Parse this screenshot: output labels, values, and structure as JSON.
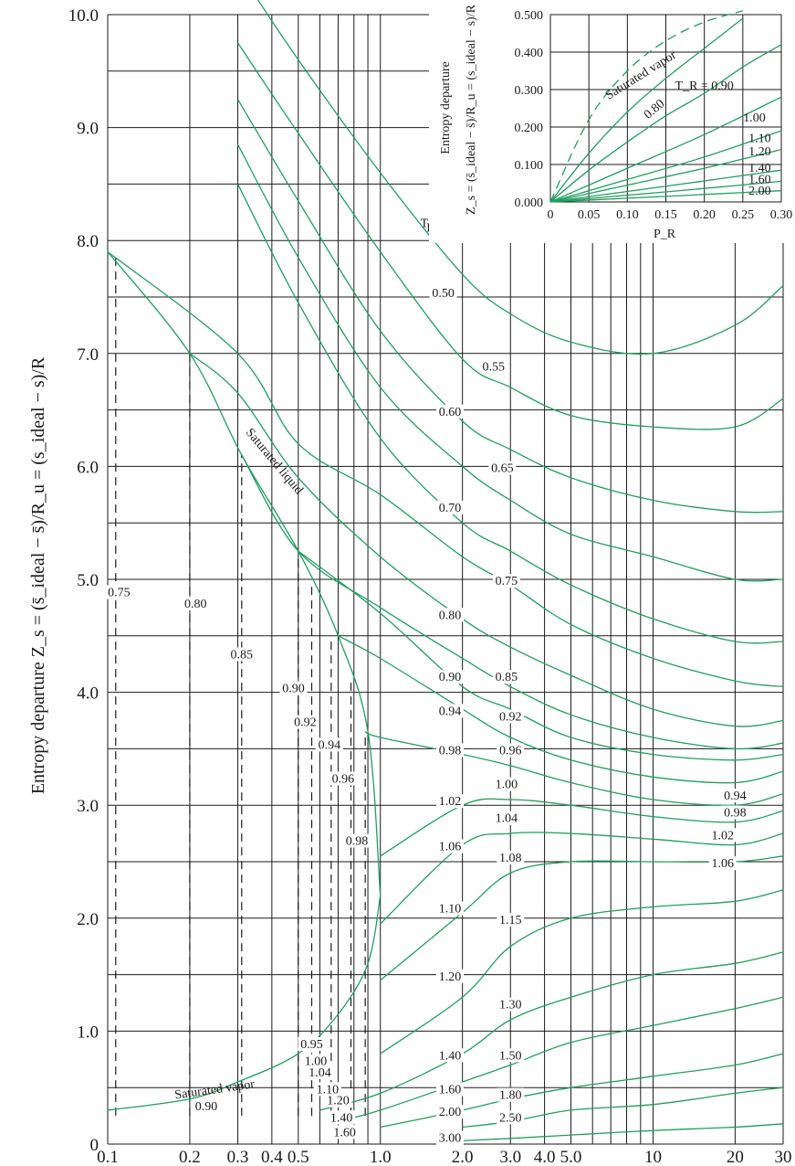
{
  "chart_data": [
    {
      "type": "line",
      "xlabel": "Reduced pressure, P_R",
      "ylabel": "Entropy departure Z_s = (s̄_ideal − s̄)/R_u = (s_ideal − s)/R",
      "x_scale": "log",
      "xlim": [
        0.1,
        30
      ],
      "ylim": [
        0,
        10
      ],
      "x_ticks": [
        "0.1",
        "0.2",
        "0.3",
        "0.4",
        "0.5",
        "1.0",
        "2.0",
        "3.0",
        "4.0",
        "5.0",
        "10",
        "20",
        "30"
      ],
      "y_ticks": [
        "0",
        "1.0",
        "2.0",
        "3.0",
        "4.0",
        "5.0",
        "6.0",
        "7.0",
        "8.0",
        "9.0",
        "10.0"
      ],
      "legend_title": "T_R",
      "series": [
        {
          "name": "0.50",
          "x": [
            0.3,
            0.5,
            1.0,
            2.0,
            3.0,
            5.0,
            10,
            20,
            30
          ],
          "y": [
            10.4,
            9.6,
            8.6,
            7.7,
            7.35,
            7.1,
            7.0,
            7.25,
            7.6
          ]
        },
        {
          "name": "0.55",
          "x": [
            0.3,
            0.5,
            1.0,
            2.0,
            3.0,
            5.0,
            10,
            20,
            30
          ],
          "y": [
            9.75,
            8.95,
            7.9,
            6.95,
            6.7,
            6.45,
            6.35,
            6.35,
            6.6
          ]
        },
        {
          "name": "0.60",
          "x": [
            0.3,
            0.5,
            1.0,
            2.0,
            3.0,
            5.0,
            10,
            20,
            30
          ],
          "y": [
            9.25,
            8.35,
            7.2,
            6.4,
            6.15,
            5.9,
            5.7,
            5.6,
            5.6
          ]
        },
        {
          "name": "0.65",
          "x": [
            0.3,
            0.5,
            1.0,
            2.0,
            3.0,
            5.0,
            10,
            20,
            30
          ],
          "y": [
            8.85,
            7.85,
            6.7,
            6.0,
            5.7,
            5.4,
            5.2,
            5.0,
            5.0
          ]
        },
        {
          "name": "0.70",
          "x": [
            0.3,
            0.5,
            1.0,
            2.0,
            3.0,
            5.0,
            10,
            20,
            30
          ],
          "y": [
            8.5,
            7.45,
            6.25,
            5.5,
            5.25,
            4.95,
            4.65,
            4.45,
            4.45
          ]
        },
        {
          "name": "0.75",
          "x": [
            0.1,
            0.3,
            0.5,
            1.0,
            2.0,
            3.0,
            5.0,
            10,
            20,
            30
          ],
          "y": [
            7.9,
            7.0,
            6.2,
            5.75,
            5.2,
            4.95,
            4.6,
            4.3,
            4.1,
            4.05
          ]
        },
        {
          "name": "0.80",
          "x": [
            0.2,
            0.3,
            0.5,
            1.0,
            2.0,
            3.0,
            5.0,
            10,
            20,
            30
          ],
          "y": [
            7.0,
            6.65,
            5.9,
            5.2,
            4.65,
            4.4,
            4.15,
            3.85,
            3.7,
            3.75
          ]
        },
        {
          "name": "0.85",
          "x": [
            0.31,
            0.5,
            1.0,
            2.0,
            3.0,
            5.0,
            10,
            20,
            30
          ],
          "y": [
            6.1,
            5.25,
            4.75,
            4.3,
            4.05,
            3.8,
            3.6,
            3.5,
            3.55
          ]
        },
        {
          "name": "0.90",
          "x": [
            0.5,
            1.0,
            2.0,
            3.0,
            5.0,
            10,
            20,
            30
          ],
          "y": [
            5.25,
            4.7,
            4.05,
            3.85,
            3.6,
            3.45,
            3.4,
            3.45
          ]
        },
        {
          "name": "0.94",
          "x": [
            0.7,
            1.0,
            2.0,
            3.0,
            5.0,
            10,
            20,
            30
          ],
          "y": [
            4.5,
            4.3,
            3.85,
            3.6,
            3.4,
            3.25,
            3.2,
            3.3
          ]
        },
        {
          "name": "0.98",
          "x": [
            0.88,
            1.0,
            2.0,
            3.0,
            5.0,
            10,
            20,
            30
          ],
          "y": [
            3.65,
            3.6,
            3.45,
            3.35,
            3.2,
            3.05,
            3.0,
            3.1
          ]
        },
        {
          "name": "1.02",
          "x": [
            1.0,
            2.0,
            3.0,
            5.0,
            10,
            20,
            30
          ],
          "y": [
            2.55,
            3.0,
            3.05,
            3.0,
            2.9,
            2.85,
            2.95
          ]
        },
        {
          "name": "1.06",
          "x": [
            1.0,
            2.0,
            3.0,
            5.0,
            10,
            20,
            30
          ],
          "y": [
            1.95,
            2.65,
            2.75,
            2.75,
            2.7,
            2.65,
            2.75
          ]
        },
        {
          "name": "1.10",
          "x": [
            1.0,
            2.0,
            3.0,
            5.0,
            10,
            20,
            30
          ],
          "y": [
            1.45,
            2.05,
            2.4,
            2.5,
            2.5,
            2.5,
            2.55
          ]
        },
        {
          "name": "1.20",
          "x": [
            1.0,
            2.0,
            3.0,
            5.0,
            10,
            20,
            30
          ],
          "y": [
            0.8,
            1.3,
            1.75,
            2.0,
            2.1,
            2.15,
            2.25
          ]
        },
        {
          "name": "1.40",
          "x": [
            0.6,
            1.0,
            2.0,
            3.0,
            5.0,
            10,
            20,
            30
          ],
          "y": [
            0.3,
            0.45,
            0.8,
            1.1,
            1.3,
            1.5,
            1.6,
            1.7
          ]
        },
        {
          "name": "1.60",
          "x": [
            0.7,
            1.0,
            2.0,
            3.0,
            5.0,
            10,
            20,
            30
          ],
          "y": [
            0.2,
            0.3,
            0.55,
            0.7,
            0.9,
            1.05,
            1.2,
            1.3
          ]
        },
        {
          "name": "2.00",
          "x": [
            1.0,
            2.0,
            3.0,
            5.0,
            10,
            20,
            30
          ],
          "y": [
            0.15,
            0.3,
            0.4,
            0.5,
            0.6,
            0.7,
            0.8
          ]
        },
        {
          "name": "2.50",
          "x": [
            2.0,
            3.0,
            5.0,
            10,
            20,
            30
          ],
          "y": [
            0.15,
            0.2,
            0.3,
            0.35,
            0.45,
            0.5
          ]
        },
        {
          "name": "3.00",
          "x": [
            2.0,
            3.0,
            5.0,
            10,
            20,
            30
          ],
          "y": [
            0.03,
            0.05,
            0.08,
            0.12,
            0.15,
            0.18
          ]
        },
        {
          "name": "Saturated liquid",
          "x": [
            0.1,
            0.2,
            0.31,
            0.5,
            0.7,
            0.9,
            1.0
          ],
          "y": [
            7.9,
            7.0,
            6.1,
            5.25,
            4.5,
            3.65,
            2.2
          ]
        },
        {
          "name": "Saturated vapor",
          "x": [
            0.1,
            0.2,
            0.3,
            0.5,
            0.7,
            0.9,
            1.0
          ],
          "y": [
            0.3,
            0.4,
            0.55,
            0.8,
            1.15,
            1.6,
            2.2
          ]
        }
      ],
      "curve_labels": [
        {
          "text": "0.50",
          "x": 1.7,
          "y": 7.5
        },
        {
          "text": "0.55",
          "x": 2.6,
          "y": 6.85
        },
        {
          "text": "0.60",
          "x": 1.8,
          "y": 6.45
        },
        {
          "text": "0.65",
          "x": 2.8,
          "y": 5.95
        },
        {
          "text": "0.70",
          "x": 1.8,
          "y": 5.6
        },
        {
          "text": "0.75",
          "x": 2.9,
          "y": 4.95
        },
        {
          "text": "0.80",
          "x": 1.8,
          "y": 4.65
        },
        {
          "text": "0.85",
          "x": 2.9,
          "y": 4.1
        },
        {
          "text": "0.90",
          "x": 1.8,
          "y": 4.1
        },
        {
          "text": "0.92",
          "x": 3.0,
          "y": 3.75
        },
        {
          "text": "0.94",
          "x": 1.8,
          "y": 3.8
        },
        {
          "text": "0.96",
          "x": 3.0,
          "y": 3.45
        },
        {
          "text": "0.98",
          "x": 1.8,
          "y": 3.45
        },
        {
          "text": "1.00",
          "x": 2.9,
          "y": 3.15
        },
        {
          "text": "1.02",
          "x": 1.8,
          "y": 3.0
        },
        {
          "text": "1.04",
          "x": 2.9,
          "y": 2.85
        },
        {
          "text": "1.06",
          "x": 1.8,
          "y": 2.6
        },
        {
          "text": "1.08",
          "x": 3.0,
          "y": 2.5
        },
        {
          "text": "1.10",
          "x": 1.8,
          "y": 2.05
        },
        {
          "text": "1.15",
          "x": 3.0,
          "y": 1.95
        },
        {
          "text": "1.20",
          "x": 1.8,
          "y": 1.45
        },
        {
          "text": "1.30",
          "x": 3.0,
          "y": 1.2
        },
        {
          "text": "1.40",
          "x": 1.8,
          "y": 0.75
        },
        {
          "text": "1.50",
          "x": 3.0,
          "y": 0.75
        },
        {
          "text": "1.60",
          "x": 1.8,
          "y": 0.45
        },
        {
          "text": "1.80",
          "x": 3.0,
          "y": 0.4
        },
        {
          "text": "2.00",
          "x": 1.8,
          "y": 0.25
        },
        {
          "text": "2.50",
          "x": 3.0,
          "y": 0.2
        },
        {
          "text": "3.00",
          "x": 1.8,
          "y": 0.02
        },
        {
          "text": "0.94",
          "x": 20,
          "y": 3.05
        },
        {
          "text": "0.98",
          "x": 20,
          "y": 2.9
        },
        {
          "text": "1.02",
          "x": 18,
          "y": 2.7
        },
        {
          "text": "1.06",
          "x": 18,
          "y": 2.45
        },
        {
          "text": "0.75",
          "x": 0.11,
          "y": 4.85
        },
        {
          "text": "0.80",
          "x": 0.21,
          "y": 4.75
        },
        {
          "text": "0.85",
          "x": 0.31,
          "y": 4.3
        },
        {
          "text": "0.90",
          "x": 0.48,
          "y": 4.0
        },
        {
          "text": "0.92",
          "x": 0.53,
          "y": 3.7
        },
        {
          "text": "0.94",
          "x": 0.65,
          "y": 3.5
        },
        {
          "text": "0.96",
          "x": 0.73,
          "y": 3.2
        },
        {
          "text": "0.98",
          "x": 0.82,
          "y": 2.65
        },
        {
          "text": "0.90",
          "x": 0.23,
          "y": 0.3
        },
        {
          "text": "0.95",
          "x": 0.56,
          "y": 0.85
        },
        {
          "text": "1.00",
          "x": 0.58,
          "y": 0.7
        },
        {
          "text": "1.04",
          "x": 0.6,
          "y": 0.6
        },
        {
          "text": "1.10",
          "x": 0.64,
          "y": 0.45
        },
        {
          "text": "1.20",
          "x": 0.7,
          "y": 0.35
        },
        {
          "text": "1.40",
          "x": 0.72,
          "y": 0.2
        },
        {
          "text": "1.60",
          "x": 0.74,
          "y": 0.07
        }
      ],
      "annotations": [
        "Saturated liquid",
        "Saturated vapor",
        "T_R"
      ]
    },
    {
      "type": "line",
      "title": "Entropy departure",
      "xlabel": "P_R",
      "ylabel": "Z_s = (s̄_ideal − s̄)/R_u = (s_ideal − s)/R",
      "xlim": [
        0,
        0.3
      ],
      "ylim": [
        0,
        0.5
      ],
      "x_ticks": [
        "0",
        "0.05",
        "0.10",
        "0.15",
        "0.20",
        "0.25",
        "0.30"
      ],
      "y_ticks": [
        "0.000",
        "0.100",
        "0.200",
        "0.300",
        "0.400",
        "0.500"
      ],
      "series": [
        {
          "name": "Saturated vapor",
          "x": [
            0,
            0.05,
            0.1,
            0.15,
            0.2,
            0.25
          ],
          "y": [
            0,
            0.22,
            0.35,
            0.43,
            0.48,
            0.51
          ]
        },
        {
          "name": "0.80",
          "x": [
            0,
            0.05,
            0.1,
            0.15,
            0.2,
            0.25
          ],
          "y": [
            0,
            0.13,
            0.24,
            0.33,
            0.41,
            0.49
          ]
        },
        {
          "name": "0.90",
          "x": [
            0,
            0.05,
            0.1,
            0.15,
            0.2,
            0.25,
            0.3
          ],
          "y": [
            0,
            0.085,
            0.16,
            0.23,
            0.29,
            0.36,
            0.42
          ]
        },
        {
          "name": "1.00",
          "x": [
            0,
            0.1,
            0.2,
            0.3
          ],
          "y": [
            0,
            0.09,
            0.18,
            0.28
          ]
        },
        {
          "name": "1.10",
          "x": [
            0,
            0.1,
            0.2,
            0.3
          ],
          "y": [
            0,
            0.06,
            0.12,
            0.19
          ]
        },
        {
          "name": "1.20",
          "x": [
            0,
            0.1,
            0.2,
            0.3
          ],
          "y": [
            0,
            0.045,
            0.09,
            0.14
          ]
        },
        {
          "name": "1.40",
          "x": [
            0,
            0.1,
            0.2,
            0.3
          ],
          "y": [
            0,
            0.028,
            0.056,
            0.085
          ]
        },
        {
          "name": "1.60",
          "x": [
            0,
            0.1,
            0.2,
            0.3
          ],
          "y": [
            0,
            0.018,
            0.036,
            0.055
          ]
        },
        {
          "name": "2.00",
          "x": [
            0,
            0.1,
            0.2,
            0.3
          ],
          "y": [
            0,
            0.01,
            0.02,
            0.03
          ]
        }
      ],
      "curve_labels": [
        {
          "text": "Saturated vapor",
          "x": 0.12,
          "y": 0.33
        },
        {
          "text": "0.80",
          "x": 0.138,
          "y": 0.24
        },
        {
          "text": "T_R = 0.90",
          "x": 0.2,
          "y": 0.3
        },
        {
          "text": "1.00",
          "x": 0.265,
          "y": 0.215
        },
        {
          "text": "1.10",
          "x": 0.272,
          "y": 0.16
        },
        {
          "text": "1.20",
          "x": 0.272,
          "y": 0.125
        },
        {
          "text": "1.40",
          "x": 0.272,
          "y": 0.08
        },
        {
          "text": "1.60",
          "x": 0.272,
          "y": 0.05
        },
        {
          "text": "2.00",
          "x": 0.272,
          "y": 0.02
        }
      ]
    }
  ]
}
